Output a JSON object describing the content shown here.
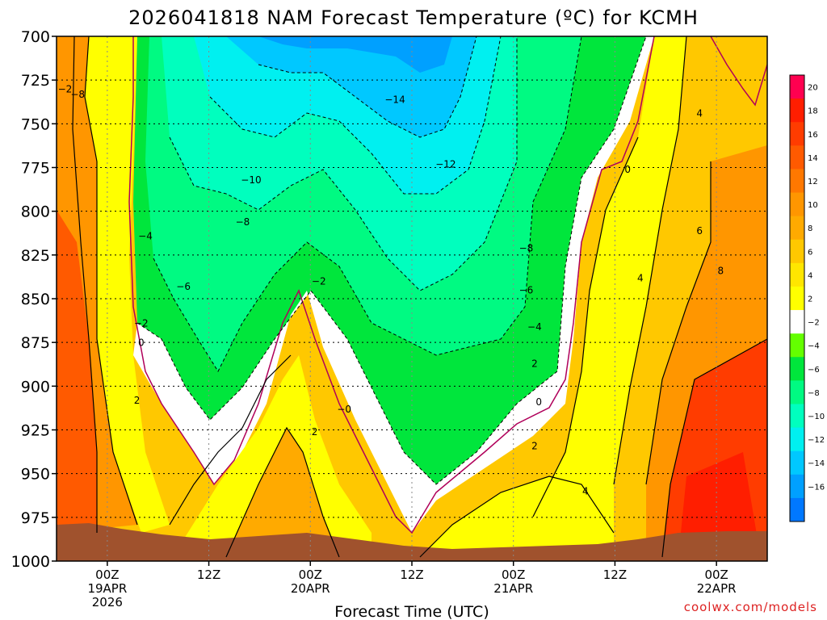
{
  "chart_data": {
    "type": "heatmap",
    "title": "2026041818 NAM Forecast Temperature (ºC) for KCMH",
    "xlabel": "Forecast Time (UTC)",
    "ylabel": "",
    "credit": "coolwx.com/models",
    "x_ticks": [
      {
        "hours": 0,
        "lines": [
          "00Z",
          "19APR",
          "2026"
        ]
      },
      {
        "hours": 12,
        "lines": [
          "12Z"
        ]
      },
      {
        "hours": 24,
        "lines": [
          "00Z",
          "20APR"
        ]
      },
      {
        "hours": 36,
        "lines": [
          "12Z"
        ]
      },
      {
        "hours": 48,
        "lines": [
          "00Z",
          "21APR"
        ]
      },
      {
        "hours": 60,
        "lines": [
          "12Z"
        ]
      },
      {
        "hours": 72,
        "lines": [
          "00Z",
          "22APR"
        ]
      }
    ],
    "x_range_hours": [
      -6,
      78
    ],
    "y_ticks": [
      700,
      725,
      750,
      775,
      800,
      825,
      850,
      875,
      900,
      925,
      950,
      975,
      1000
    ],
    "y_range_hpa": [
      700,
      1000
    ],
    "grid": true,
    "legend": "colorbar-right",
    "colorbar": {
      "labels": [
        "20",
        "18",
        "16",
        "14",
        "12",
        "10",
        "8",
        "6",
        "4",
        "2",
        "−2",
        "−4",
        "−6",
        "−8",
        "−10",
        "−12",
        "−14",
        "−16"
      ],
      "colors": [
        "#ff0050",
        "#ff1e00",
        "#ff3c00",
        "#ff5a00",
        "#ff7800",
        "#ff9600",
        "#ffaa00",
        "#ffc800",
        "#ffe600",
        "#ffff00",
        "#ffffff",
        "#64ff00",
        "#00e63c",
        "#00fa82",
        "#00ffbe",
        "#00f0f0",
        "#00c8ff",
        "#00a0ff",
        "#0078ff"
      ]
    },
    "contour_labels": [
      {
        "text": "−2",
        "h": -5,
        "p": 732
      },
      {
        "text": "−8",
        "h": -3.5,
        "p": 735
      },
      {
        "text": "−14",
        "h": 34,
        "p": 738
      },
      {
        "text": "−12",
        "h": 40,
        "p": 775
      },
      {
        "text": "−10",
        "h": 17,
        "p": 784
      },
      {
        "text": "−8",
        "h": 16,
        "p": 808
      },
      {
        "text": "−4",
        "h": 4.5,
        "p": 816
      },
      {
        "text": "−8",
        "h": 49.5,
        "p": 823
      },
      {
        "text": "−2",
        "h": 25,
        "p": 842
      },
      {
        "text": "−6",
        "h": 9,
        "p": 845
      },
      {
        "text": "−6",
        "h": 49.5,
        "p": 847
      },
      {
        "text": "−2",
        "h": 4,
        "p": 866
      },
      {
        "text": "−4",
        "h": 50.5,
        "p": 868
      },
      {
        "text": "0",
        "h": 4,
        "p": 877
      },
      {
        "text": "2",
        "h": 50.5,
        "p": 889
      },
      {
        "text": "2",
        "h": 3.5,
        "p": 910
      },
      {
        "text": "0",
        "h": 51,
        "p": 911
      },
      {
        "text": "−0",
        "h": 28,
        "p": 915
      },
      {
        "text": "2",
        "h": 24.5,
        "p": 928
      },
      {
        "text": "2",
        "h": 50.5,
        "p": 936
      },
      {
        "text": "4",
        "h": 56.5,
        "p": 962
      },
      {
        "text": "0",
        "h": 61.5,
        "p": 778
      },
      {
        "text": "4",
        "h": 70,
        "p": 746
      },
      {
        "text": "6",
        "h": 70,
        "p": 813
      },
      {
        "text": "4",
        "h": 63,
        "p": 840
      },
      {
        "text": "8",
        "h": 72.5,
        "p": 836
      }
    ]
  }
}
